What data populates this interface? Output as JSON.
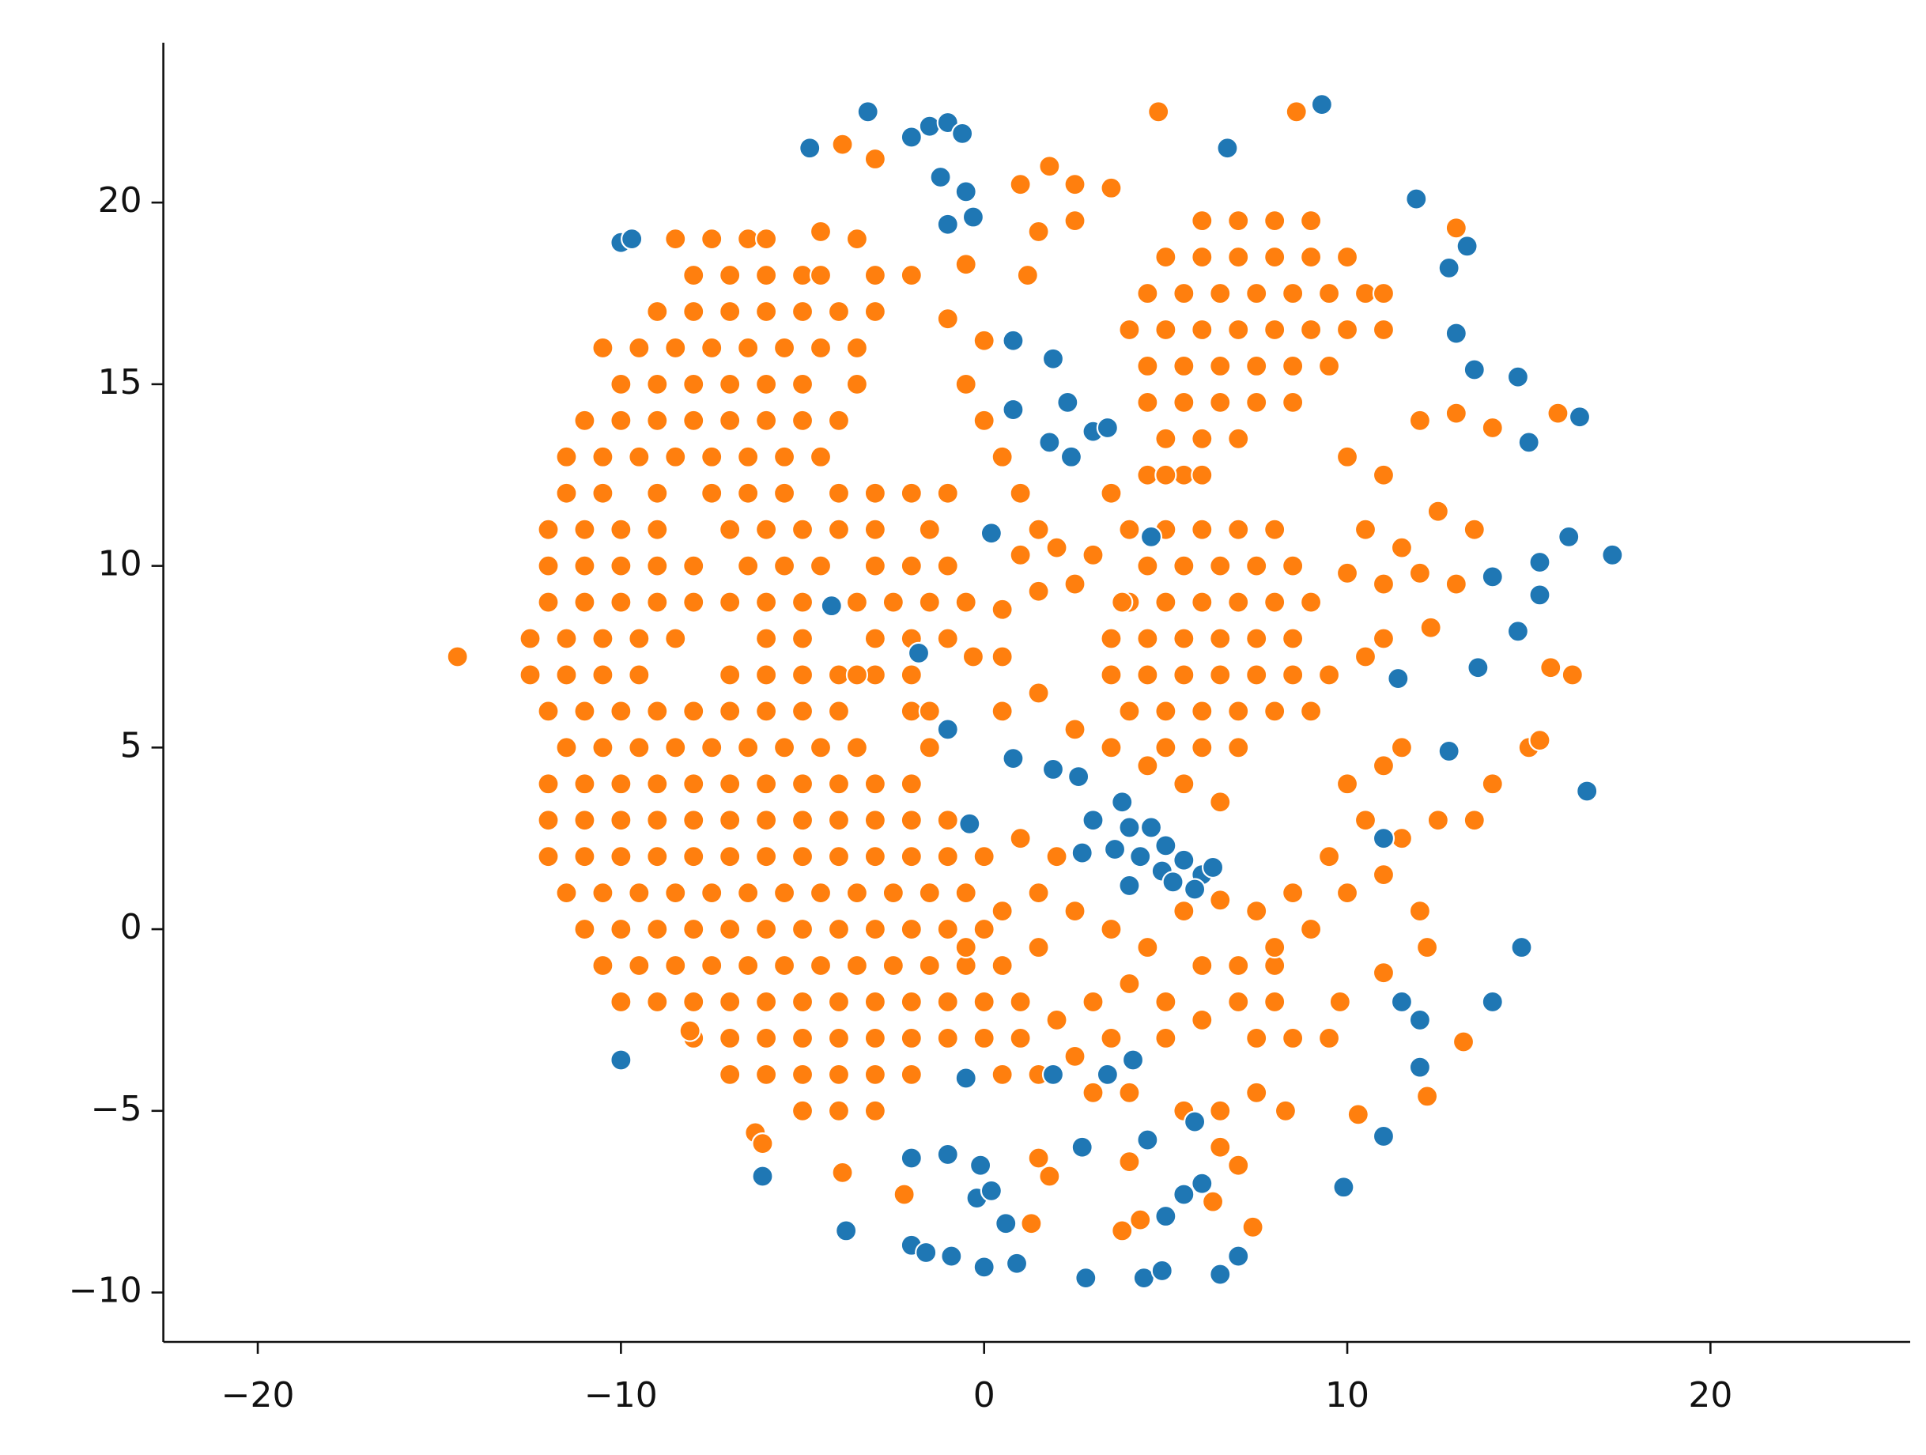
{
  "chart_data": {
    "type": "scatter",
    "xlim": [
      -22.6,
      25.5
    ],
    "ylim": [
      -11.36,
      24.4
    ],
    "xticks": [
      {
        "value": -20,
        "label": "−20"
      },
      {
        "value": -10,
        "label": "−10"
      },
      0,
      10,
      20
    ],
    "yticks": [
      {
        "value": -10,
        "label": "−10"
      },
      {
        "value": -5,
        "label": "−5"
      },
      0,
      5,
      10,
      15,
      20
    ],
    "series": [
      {
        "color": "#ff7f0e",
        "x": [
          -8.5,
          -7.5,
          -6.5,
          -6,
          -3.5,
          -8,
          -7,
          -6,
          -5,
          -4.5,
          -3,
          -2,
          -9,
          -8,
          -7,
          -6,
          -5,
          -4,
          -3,
          -10.5,
          -9.5,
          -8.5,
          -7.5,
          -6.5,
          -5.5,
          -4.5,
          -3.5,
          -10,
          -9,
          -8,
          -7,
          -6,
          -5,
          -3.5,
          -11,
          -10,
          -9,
          -8,
          -7,
          -6,
          -5,
          -4,
          -11.5,
          -10.5,
          -9.5,
          -8.5,
          -7.5,
          -6.5,
          -5.5,
          -4.5,
          -11.5,
          -10.5,
          -9,
          -7.5,
          -6.5,
          -5.5,
          -4,
          -3,
          -2,
          -1,
          -12,
          -11,
          -10,
          -9,
          -7,
          -6,
          -5,
          -4,
          -3,
          -1.5,
          -12,
          -11,
          -10,
          -9,
          -8,
          -6.5,
          -5.5,
          -4.5,
          -3,
          -2,
          -1,
          -12,
          -11,
          -10,
          -9,
          -8,
          -7,
          -6,
          -5,
          -3.5,
          -2.5,
          -1.5,
          -12.5,
          -11.5,
          -10.5,
          -9.5,
          -8.5,
          -6,
          -5,
          -3,
          -2,
          -1,
          -12.5,
          -11.5,
          -10.5,
          -9.5,
          -7,
          -6,
          -5,
          -4,
          -3,
          -2,
          -12,
          -11,
          -10,
          -9,
          -8,
          -7,
          -6,
          -5,
          -4,
          -2,
          -1.5,
          -11.5,
          -10.5,
          -9.5,
          -8.5,
          -7.5,
          -6.5,
          -5.5,
          -4.5,
          -3.5,
          -1.5,
          -12,
          -11,
          -10,
          -9,
          -8,
          -7,
          -6,
          -5,
          -4,
          -3,
          -2,
          -12,
          -11,
          -10,
          -9,
          -8,
          -7,
          -6,
          -5,
          -4,
          -3,
          -2,
          -1,
          -12,
          -11,
          -10,
          -9,
          -8,
          -7,
          -6,
          -5,
          -4,
          -3,
          -2,
          -1,
          0,
          -11.5,
          -10.5,
          -9.5,
          -8.5,
          -7.5,
          -6.5,
          -5.5,
          -4.5,
          -3.5,
          -2.5,
          -1.5,
          -0.5,
          -11,
          -10,
          -9,
          -8,
          -7,
          -6,
          -5,
          -4,
          -3,
          -2,
          -1,
          0,
          -10.5,
          -9.5,
          -8.5,
          -7.5,
          -6.5,
          -5.5,
          -4.5,
          -3.5,
          -2.5,
          -1.5,
          -0.5,
          0.5,
          -10,
          -9,
          -8,
          -7,
          -6,
          -5,
          -4,
          -3,
          -2,
          -1,
          0,
          1,
          -8,
          -7,
          -6,
          -5,
          -4,
          -3,
          -2,
          -1,
          0,
          1,
          -7,
          -6,
          -5,
          -4,
          -3,
          -2,
          0.5,
          1.5,
          -5,
          -4,
          -3,
          6,
          7,
          8,
          9,
          5,
          6,
          7,
          8,
          9,
          10,
          4.5,
          5.5,
          6.5,
          7.5,
          8.5,
          9.5,
          10.5,
          11,
          4,
          5,
          6,
          7,
          8,
          9,
          10,
          11,
          4.5,
          5.5,
          6.5,
          7.5,
          8.5,
          9.5,
          4.5,
          5.5,
          6.5,
          7.5,
          8.5,
          5,
          6,
          7,
          4.5,
          5.5,
          6,
          5,
          6,
          7,
          8,
          4.5,
          5.5,
          6.5,
          7.5,
          8.5,
          4,
          5,
          6,
          7,
          8,
          9,
          3.5,
          4.5,
          5.5,
          6.5,
          7.5,
          8.5,
          3.5,
          4.5,
          5.5,
          6.5,
          7.5,
          8.5,
          9.5,
          4,
          5,
          6,
          7,
          8,
          9,
          5,
          6,
          7,
          1,
          1.8,
          2.5,
          3.5,
          1.5,
          2.5,
          -0.5,
          1.2,
          -1,
          0,
          -0.5,
          0,
          0.5,
          1,
          1.5,
          1,
          2,
          3,
          2.5,
          1.5,
          0.5,
          0.5,
          0.5,
          1.5,
          2.5,
          3.5,
          4.5,
          5.5,
          6.5,
          3.5,
          4,
          5,
          3.8,
          -14.5,
          10,
          11,
          12,
          13,
          14,
          15.8,
          10.5,
          11.5,
          12.5,
          13.5,
          10,
          11,
          12,
          13,
          11,
          12.3,
          10.5,
          15.6,
          16.2,
          10,
          11,
          11.5,
          10.5,
          11.5,
          12.5,
          13.5,
          14,
          15,
          15.3,
          9.5,
          10,
          11,
          12,
          12.2,
          11,
          9.8,
          9.5,
          8.5,
          10.3,
          12.2,
          13.2,
          13,
          8.6,
          4.8,
          -3.9,
          -3,
          -4.5,
          1,
          2,
          1.5,
          2.5,
          3.5,
          4.5,
          5.5,
          6.5,
          7.5,
          8.5,
          9,
          8,
          7,
          6,
          5,
          4,
          3,
          2,
          2.5,
          3.5,
          1.5,
          0.5,
          -0.5,
          5,
          6,
          7,
          8,
          3,
          4,
          5.5,
          6.5,
          7.5,
          8.3,
          6.5,
          7,
          6.3,
          7.4,
          4.3,
          3.8,
          1.8,
          1.3,
          1.5,
          -2.2,
          -3.9,
          -6.3,
          -6.1,
          4,
          8,
          7.5,
          -8.1,
          -3.5,
          -0.5,
          -1,
          -0.3
        ],
        "values": [
          19,
          19,
          19,
          19,
          19,
          18,
          18,
          18,
          18,
          18,
          18,
          18,
          17,
          17,
          17,
          17,
          17,
          17,
          17,
          16,
          16,
          16,
          16,
          16,
          16,
          16,
          16,
          15,
          15,
          15,
          15,
          15,
          15,
          15,
          14,
          14,
          14,
          14,
          14,
          14,
          14,
          14,
          13,
          13,
          13,
          13,
          13,
          13,
          13,
          13,
          12,
          12,
          12,
          12,
          12,
          12,
          12,
          12,
          12,
          12,
          11,
          11,
          11,
          11,
          11,
          11,
          11,
          11,
          11,
          11,
          10,
          10,
          10,
          10,
          10,
          10,
          10,
          10,
          10,
          10,
          10,
          9,
          9,
          9,
          9,
          9,
          9,
          9,
          9,
          9,
          9,
          9,
          8,
          8,
          8,
          8,
          8,
          8,
          8,
          8,
          8,
          8,
          7,
          7,
          7,
          7,
          7,
          7,
          7,
          7,
          7,
          7,
          6,
          6,
          6,
          6,
          6,
          6,
          6,
          6,
          6,
          6,
          6,
          5,
          5,
          5,
          5,
          5,
          5,
          5,
          5,
          5,
          5,
          4,
          4,
          4,
          4,
          4,
          4,
          4,
          4,
          4,
          4,
          4,
          3,
          3,
          3,
          3,
          3,
          3,
          3,
          3,
          3,
          3,
          3,
          3,
          2,
          2,
          2,
          2,
          2,
          2,
          2,
          2,
          2,
          2,
          2,
          2,
          2,
          1,
          1,
          1,
          1,
          1,
          1,
          1,
          1,
          1,
          1,
          1,
          1,
          0,
          0,
          0,
          0,
          0,
          0,
          0,
          0,
          0,
          0,
          0,
          0,
          -1,
          -1,
          -1,
          -1,
          -1,
          -1,
          -1,
          -1,
          -1,
          -1,
          -1,
          -1,
          -2,
          -2,
          -2,
          -2,
          -2,
          -2,
          -2,
          -2,
          -2,
          -2,
          -2,
          -2,
          -3,
          -3,
          -3,
          -3,
          -3,
          -3,
          -3,
          -3,
          -3,
          -3,
          -4,
          -4,
          -4,
          -4,
          -4,
          -4,
          -4,
          -4,
          -5,
          -5,
          -5,
          19.5,
          19.5,
          19.5,
          19.5,
          18.5,
          18.5,
          18.5,
          18.5,
          18.5,
          18.5,
          17.5,
          17.5,
          17.5,
          17.5,
          17.5,
          17.5,
          17.5,
          17.5,
          16.5,
          16.5,
          16.5,
          16.5,
          16.5,
          16.5,
          16.5,
          16.5,
          15.5,
          15.5,
          15.5,
          15.5,
          15.5,
          15.5,
          14.5,
          14.5,
          14.5,
          14.5,
          14.5,
          13.5,
          13.5,
          13.5,
          12.5,
          12.5,
          12.5,
          11,
          11,
          11,
          11,
          10,
          10,
          10,
          10,
          10,
          9,
          9,
          9,
          9,
          9,
          9,
          8,
          8,
          8,
          8,
          8,
          8,
          7,
          7,
          7,
          7,
          7,
          7,
          7,
          6,
          6,
          6,
          6,
          6,
          6,
          5,
          5,
          5,
          20.5,
          21,
          20.5,
          20.4,
          19.2,
          19.5,
          18.3,
          18,
          16.8,
          16.2,
          15,
          14,
          13,
          12,
          11,
          10.3,
          10.5,
          10.3,
          9.5,
          9.3,
          8.8,
          7.5,
          6,
          6.5,
          5.5,
          5,
          4.5,
          4,
          3.5,
          12,
          11,
          12.5,
          9,
          7.5,
          13,
          12.5,
          14,
          14.2,
          13.8,
          14.2,
          11,
          10.5,
          11.5,
          11,
          9.8,
          9.5,
          9.8,
          9.5,
          8,
          8.3,
          7.5,
          7.2,
          7,
          4,
          4.5,
          5,
          3,
          2.5,
          3,
          3,
          4,
          5,
          5.2,
          2,
          1,
          1.5,
          0.5,
          -0.5,
          -1.2,
          -2,
          -3,
          -3,
          -5.1,
          -4.6,
          -3.1,
          19.3,
          22.5,
          22.5,
          21.6,
          21.2,
          19.2,
          2.5,
          2,
          1,
          0.5,
          0,
          -0.5,
          0.5,
          0.8,
          0.5,
          1,
          0,
          -1,
          -1,
          -1,
          -2,
          -1.5,
          -2,
          -2.5,
          -3.5,
          -3,
          -0.5,
          0.5,
          -0.5,
          -3,
          -2.5,
          -2,
          -2,
          -4.5,
          -4.5,
          -5,
          -5,
          -4.5,
          -5,
          -6,
          -6.5,
          -7.5,
          -8.2,
          -8,
          -8.3,
          -6.8,
          -8.1,
          -6.3,
          -7.3,
          -6.7,
          -5.6,
          -5.9,
          -6.4,
          -0.5,
          -3,
          -2.8,
          7,
          9,
          8,
          7.5
        ]
      },
      {
        "color": "#1f77b4",
        "x": [
          -3.2,
          -4.8,
          -2,
          -1.5,
          -1,
          -0.6,
          -1.2,
          -0.5,
          -1,
          -0.3,
          6.7,
          9.3,
          -10,
          -9.7,
          11.9,
          12.8,
          13.3,
          13,
          13.5,
          14.7,
          16.4,
          15,
          0.8,
          1.9,
          0.8,
          2.3,
          1.8,
          3,
          3.4,
          2.4,
          0.2,
          4.6,
          16.1,
          17.3,
          15.3,
          15.3,
          14,
          14.7,
          13.6,
          11.4,
          -4.2,
          -1.8,
          -1,
          12.8,
          16.6,
          11,
          0.8,
          1.9,
          2.6,
          3.8,
          4,
          3.6,
          4.3,
          4.9,
          5.2,
          5.5,
          6,
          4.6,
          5,
          5.8,
          6.3,
          4,
          3,
          2.7,
          -0.4,
          14.8,
          11.5,
          12,
          14,
          12,
          11,
          9.9,
          -10,
          -6.1,
          -3.8,
          -2,
          -1,
          -0.1,
          -0.2,
          0.2,
          0.6,
          -2,
          -1.6,
          -0.9,
          0,
          0.9,
          2.8,
          4.4,
          4.9,
          6.5,
          7,
          4.5,
          5,
          5.5,
          6,
          2.7,
          -0.5,
          1.9,
          3.4,
          4.1,
          5.8
        ],
        "values": [
          22.5,
          21.5,
          21.8,
          22.1,
          22.2,
          21.9,
          20.7,
          20.3,
          19.4,
          19.6,
          21.5,
          22.7,
          18.9,
          19,
          20.1,
          18.2,
          18.8,
          16.4,
          15.4,
          15.2,
          14.1,
          13.4,
          16.2,
          15.7,
          14.3,
          14.5,
          13.4,
          13.7,
          13.8,
          13,
          10.9,
          10.8,
          10.8,
          10.3,
          10.1,
          9.2,
          9.7,
          8.2,
          7.2,
          6.9,
          8.9,
          7.6,
          5.5,
          4.9,
          3.8,
          2.5,
          4.7,
          4.4,
          4.2,
          3.5,
          2.8,
          2.2,
          2,
          1.6,
          1.3,
          1.9,
          1.5,
          2.8,
          2.3,
          1.1,
          1.7,
          1.2,
          3,
          2.1,
          2.9,
          -0.5,
          -2,
          -2.5,
          -2,
          -3.8,
          -5.7,
          -7.1,
          -3.6,
          -6.8,
          -8.3,
          -6.3,
          -6.2,
          -6.5,
          -7.4,
          -7.2,
          -8.1,
          -8.7,
          -8.9,
          -9,
          -9.3,
          -9.2,
          -9.6,
          -9.6,
          -9.4,
          -9.5,
          -9,
          -5.8,
          -7.9,
          -7.3,
          -7,
          -6,
          -4.1,
          -4,
          -4,
          -3.6,
          -5.3
        ]
      }
    ]
  }
}
